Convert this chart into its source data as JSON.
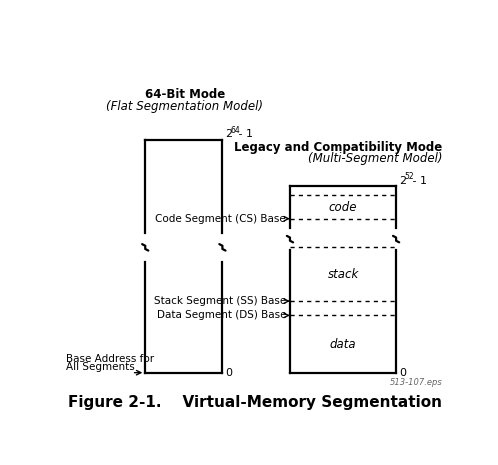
{
  "bg_color": "#ffffff",
  "title_64bit_line1": "64-Bit Mode",
  "title_64bit_line2": "(Flat Segmentation Model)",
  "title_legacy_line1": "Legacy and Compatibility Mode",
  "title_legacy_line2": "(Multi-Segment Model)",
  "label_2_64": "2",
  "label_2_64_exp": "64",
  "label_suffix_64": " - 1",
  "label_2_32": "2",
  "label_2_32_exp": "52",
  "label_suffix_32": " - 1",
  "label_base_addr_line1": "Base Address for",
  "label_base_addr_line2": "All Segments",
  "label_code_seg": "Code Segment (CS) Base",
  "label_stack_seg": "Stack Segment (SS) Base",
  "label_data_seg": "Data Segment (DS) Base",
  "label_code": "code",
  "label_stack": "stack",
  "label_data": "data",
  "label_fig": "Figure 2-1.    Virtual-Memory Segmentation",
  "label_eps": "513-107.eps",
  "line_color": "#000000",
  "title_fs": 8.5,
  "inner_fs": 8.5,
  "label_fs": 7.5,
  "fig_fs": 11,
  "eps_fs": 6,
  "sup_fs": 5.5
}
